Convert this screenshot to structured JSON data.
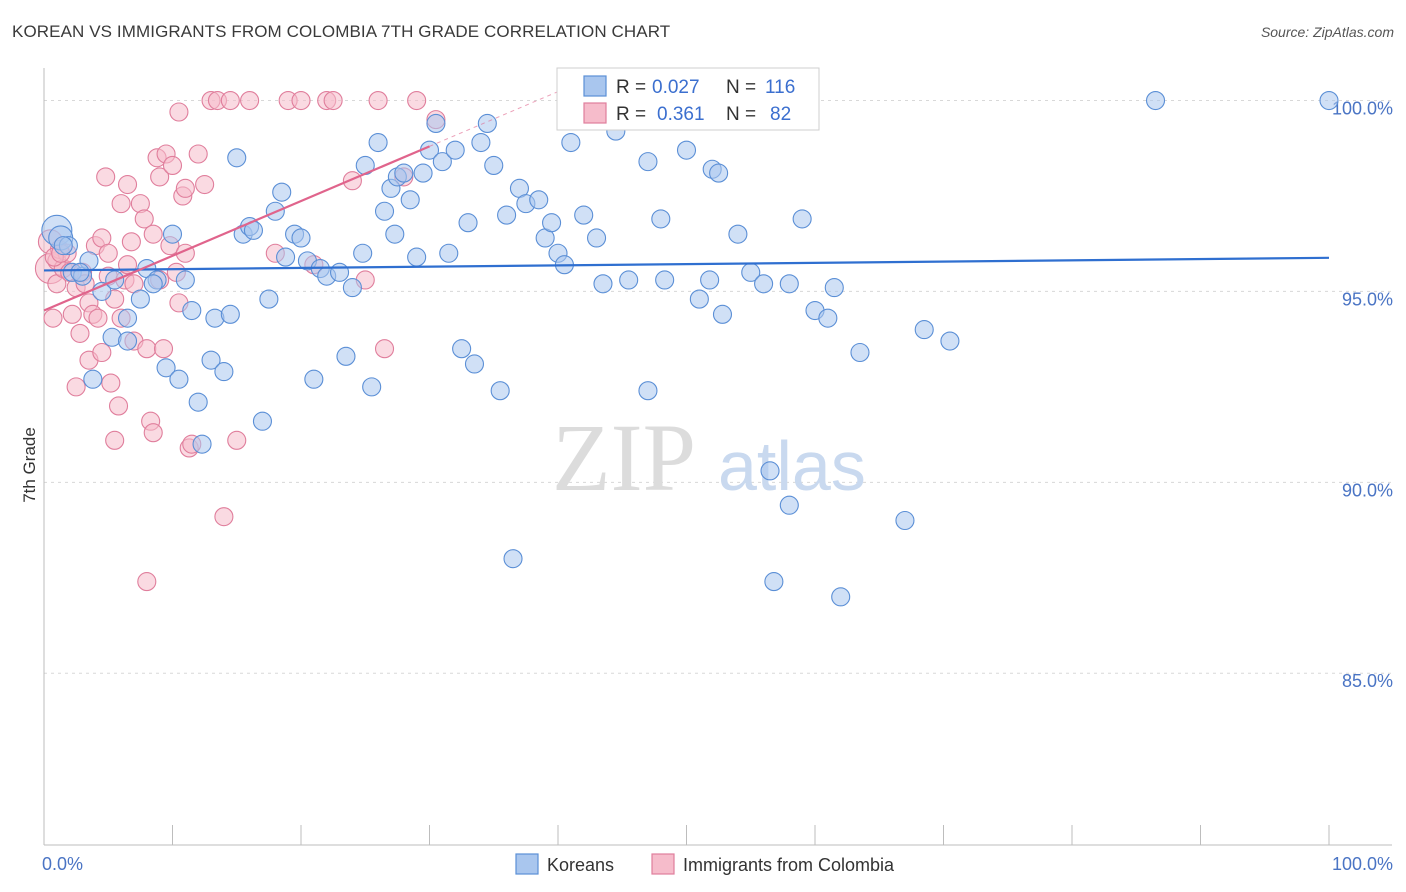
{
  "header": {
    "title": "KOREAN VS IMMIGRANTS FROM COLOMBIA 7TH GRADE CORRELATION CHART",
    "source": "Source: ZipAtlas.com"
  },
  "watermark": {
    "zip": "ZIP",
    "atlas": "atlas"
  },
  "colors": {
    "korean_fill": "#a9c6ee",
    "korean_stroke": "#5b8fd6",
    "korean_line": "#2f6fd0",
    "colombia_fill": "#f6bccb",
    "colombia_stroke": "#e07e9c",
    "colombia_line": "#e0648c",
    "grid": "#d8d8d8",
    "axis_text": "#4a74c4"
  },
  "stats": [
    {
      "r_label": "R =",
      "r_value": "0.027",
      "n_label": "N =",
      "n_value": "116",
      "series": "korean"
    },
    {
      "r_label": "R =",
      "r_value": "0.361",
      "n_label": "N =",
      "n_value": "82",
      "series": "colombia"
    }
  ],
  "chart_data": {
    "type": "scatter",
    "title": "KOREAN VS IMMIGRANTS FROM COLOMBIA 7TH GRADE CORRELATION CHART",
    "xlabel": "",
    "ylabel": "7th Grade",
    "xlim": [
      0,
      100
    ],
    "ylim": [
      80.5,
      100.8
    ],
    "x_tick_labels": [
      {
        "value": 0,
        "label": "0.0%"
      },
      {
        "value": 100,
        "label": "100.0%"
      }
    ],
    "y_tick_labels": [
      {
        "value": 100,
        "label": "100.0%"
      },
      {
        "value": 95,
        "label": "95.0%"
      },
      {
        "value": 90,
        "label": "90.0%"
      },
      {
        "value": 85,
        "label": "85.0%"
      }
    ],
    "grid": true,
    "legend_position": "bottom-center",
    "series": [
      {
        "name": "Koreans",
        "color": "#a9c6ee",
        "trend": {
          "x": [
            0,
            100
          ],
          "y": [
            95.55,
            95.88
          ]
        },
        "points": [
          [
            1,
            96.6
          ],
          [
            1.3,
            96.4
          ],
          [
            1.9,
            96.2
          ],
          [
            2.2,
            95.5
          ],
          [
            3,
            95.4
          ],
          [
            3.5,
            95.8
          ],
          [
            4.5,
            95.0
          ],
          [
            5.5,
            95.3
          ],
          [
            6.5,
            94.3
          ],
          [
            3.8,
            92.7
          ],
          [
            5.3,
            93.8
          ],
          [
            6.5,
            93.7
          ],
          [
            7.5,
            94.8
          ],
          [
            8,
            95.6
          ],
          [
            8.8,
            95.3
          ],
          [
            9.5,
            93.0
          ],
          [
            10,
            96.5
          ],
          [
            10.5,
            92.7
          ],
          [
            11,
            95.3
          ],
          [
            11.5,
            94.5
          ],
          [
            12,
            92.1
          ],
          [
            12.3,
            91.0
          ],
          [
            13,
            93.2
          ],
          [
            13.3,
            94.3
          ],
          [
            14,
            92.9
          ],
          [
            14.5,
            94.4
          ],
          [
            15,
            98.5
          ],
          [
            15.5,
            96.5
          ],
          [
            16,
            96.7
          ],
          [
            16.3,
            96.6
          ],
          [
            17,
            91.6
          ],
          [
            17.5,
            94.8
          ],
          [
            18,
            97.1
          ],
          [
            18.5,
            97.6
          ],
          [
            19.5,
            96.5
          ],
          [
            20,
            96.4
          ],
          [
            20.5,
            95.8
          ],
          [
            21,
            92.7
          ],
          [
            21.5,
            95.6
          ],
          [
            22,
            95.4
          ],
          [
            23,
            95.5
          ],
          [
            23.5,
            93.3
          ],
          [
            24,
            95.1
          ],
          [
            24.8,
            96.0
          ],
          [
            25,
            98.3
          ],
          [
            25.5,
            92.5
          ],
          [
            26,
            98.9
          ],
          [
            26.5,
            97.1
          ],
          [
            27,
            97.7
          ],
          [
            27.5,
            98.0
          ],
          [
            28,
            98.1
          ],
          [
            28.5,
            97.4
          ],
          [
            29,
            95.9
          ],
          [
            29.5,
            98.1
          ],
          [
            30,
            98.7
          ],
          [
            30.5,
            99.4
          ],
          [
            31,
            98.4
          ],
          [
            31.5,
            96.0
          ],
          [
            32,
            98.7
          ],
          [
            32.5,
            93.5
          ],
          [
            33,
            96.8
          ],
          [
            33.5,
            93.1
          ],
          [
            34,
            98.9
          ],
          [
            34.5,
            99.4
          ],
          [
            35,
            98.3
          ],
          [
            35.5,
            92.4
          ],
          [
            36.5,
            88.0
          ],
          [
            37,
            97.7
          ],
          [
            37.5,
            97.3
          ],
          [
            38.5,
            97.4
          ],
          [
            39,
            96.4
          ],
          [
            39.5,
            96.8
          ],
          [
            40,
            96.0
          ],
          [
            40.5,
            95.7
          ],
          [
            41,
            98.9
          ],
          [
            41.5,
            100.0
          ],
          [
            42,
            97.0
          ],
          [
            43,
            96.4
          ],
          [
            43.5,
            95.2
          ],
          [
            45.5,
            95.3
          ],
          [
            47,
            98.4
          ],
          [
            47,
            92.4
          ],
          [
            48,
            96.9
          ],
          [
            48.3,
            95.3
          ],
          [
            50,
            98.7
          ],
          [
            51,
            94.8
          ],
          [
            51.8,
            95.3
          ],
          [
            52,
            98.2
          ],
          [
            52.5,
            98.1
          ],
          [
            52.8,
            94.4
          ],
          [
            53.5,
            100.0
          ],
          [
            54,
            96.5
          ],
          [
            55,
            95.5
          ],
          [
            56,
            95.2
          ],
          [
            56.5,
            90.3
          ],
          [
            56.8,
            87.4
          ],
          [
            58,
            95.2
          ],
          [
            58,
            89.4
          ],
          [
            59,
            96.9
          ],
          [
            60,
            94.5
          ],
          [
            61,
            94.3
          ],
          [
            61.5,
            95.1
          ],
          [
            62,
            87.0
          ],
          [
            63.5,
            93.4
          ],
          [
            67,
            89.0
          ],
          [
            68.5,
            94.0
          ],
          [
            70.5,
            93.7
          ],
          [
            86.5,
            100.0
          ],
          [
            100,
            100.0
          ],
          [
            1.5,
            96.2
          ],
          [
            2.8,
            95.5
          ],
          [
            18.8,
            95.9
          ],
          [
            44.5,
            99.2
          ],
          [
            8.5,
            95.2
          ],
          [
            27.3,
            96.5
          ],
          [
            36,
            97.0
          ]
        ]
      },
      {
        "name": "Immigrants from Colombia",
        "color": "#f6bccb",
        "trend": {
          "x": [
            0,
            30
          ],
          "y": [
            94.5,
            98.8
          ]
        },
        "points": [
          [
            0.5,
            95.6
          ],
          [
            0.5,
            96.3
          ],
          [
            0.7,
            94.3
          ],
          [
            1,
            95.8
          ],
          [
            1,
            95.2
          ],
          [
            1.2,
            96.1
          ],
          [
            1.5,
            95.6
          ],
          [
            1.8,
            96.0
          ],
          [
            2,
            95.5
          ],
          [
            2.2,
            94.4
          ],
          [
            2.5,
            95.1
          ],
          [
            2.5,
            92.5
          ],
          [
            2.8,
            93.9
          ],
          [
            3,
            95.5
          ],
          [
            3.2,
            95.2
          ],
          [
            3.5,
            94.7
          ],
          [
            3.5,
            93.2
          ],
          [
            3.8,
            94.4
          ],
          [
            4,
            96.2
          ],
          [
            4.2,
            94.3
          ],
          [
            4.5,
            96.4
          ],
          [
            4.5,
            93.4
          ],
          [
            4.8,
            98.0
          ],
          [
            5,
            96.0
          ],
          [
            5,
            95.4
          ],
          [
            5.2,
            92.6
          ],
          [
            5.5,
            91.1
          ],
          [
            5.5,
            94.8
          ],
          [
            5.8,
            92.0
          ],
          [
            6,
            94.3
          ],
          [
            6,
            97.3
          ],
          [
            6.3,
            95.3
          ],
          [
            6.5,
            95.7
          ],
          [
            6.5,
            97.8
          ],
          [
            6.8,
            96.3
          ],
          [
            7,
            93.7
          ],
          [
            7,
            95.2
          ],
          [
            7.5,
            97.3
          ],
          [
            7.8,
            96.9
          ],
          [
            8,
            93.5
          ],
          [
            8,
            87.4
          ],
          [
            8.3,
            91.6
          ],
          [
            8.5,
            96.5
          ],
          [
            8.5,
            91.3
          ],
          [
            8.8,
            98.5
          ],
          [
            9,
            98.0
          ],
          [
            9,
            95.3
          ],
          [
            9.3,
            93.5
          ],
          [
            9.5,
            98.6
          ],
          [
            9.8,
            96.2
          ],
          [
            10,
            98.3
          ],
          [
            10.3,
            95.5
          ],
          [
            10.5,
            94.7
          ],
          [
            10.5,
            99.7
          ],
          [
            10.8,
            97.5
          ],
          [
            11,
            97.7
          ],
          [
            11,
            96.0
          ],
          [
            11.3,
            90.9
          ],
          [
            11.5,
            91.0
          ],
          [
            12,
            98.6
          ],
          [
            12.5,
            97.8
          ],
          [
            13,
            100.0
          ],
          [
            13.5,
            100.0
          ],
          [
            14,
            89.1
          ],
          [
            14.5,
            100.0
          ],
          [
            15,
            91.1
          ],
          [
            16,
            100.0
          ],
          [
            18,
            96.0
          ],
          [
            19,
            100.0
          ],
          [
            20,
            100.0
          ],
          [
            21,
            95.7
          ],
          [
            22,
            100.0
          ],
          [
            22.5,
            100.0
          ],
          [
            24,
            97.9
          ],
          [
            25,
            95.3
          ],
          [
            26,
            100.0
          ],
          [
            26.5,
            93.5
          ],
          [
            29,
            100.0
          ],
          [
            30.5,
            99.5
          ],
          [
            28,
            98.0
          ],
          [
            0.8,
            95.9
          ],
          [
            1.3,
            96.0
          ]
        ]
      }
    ]
  },
  "legend": {
    "items": [
      {
        "label": "Koreans",
        "series": "korean"
      },
      {
        "label": "Immigrants from Colombia",
        "series": "colombia"
      }
    ]
  }
}
